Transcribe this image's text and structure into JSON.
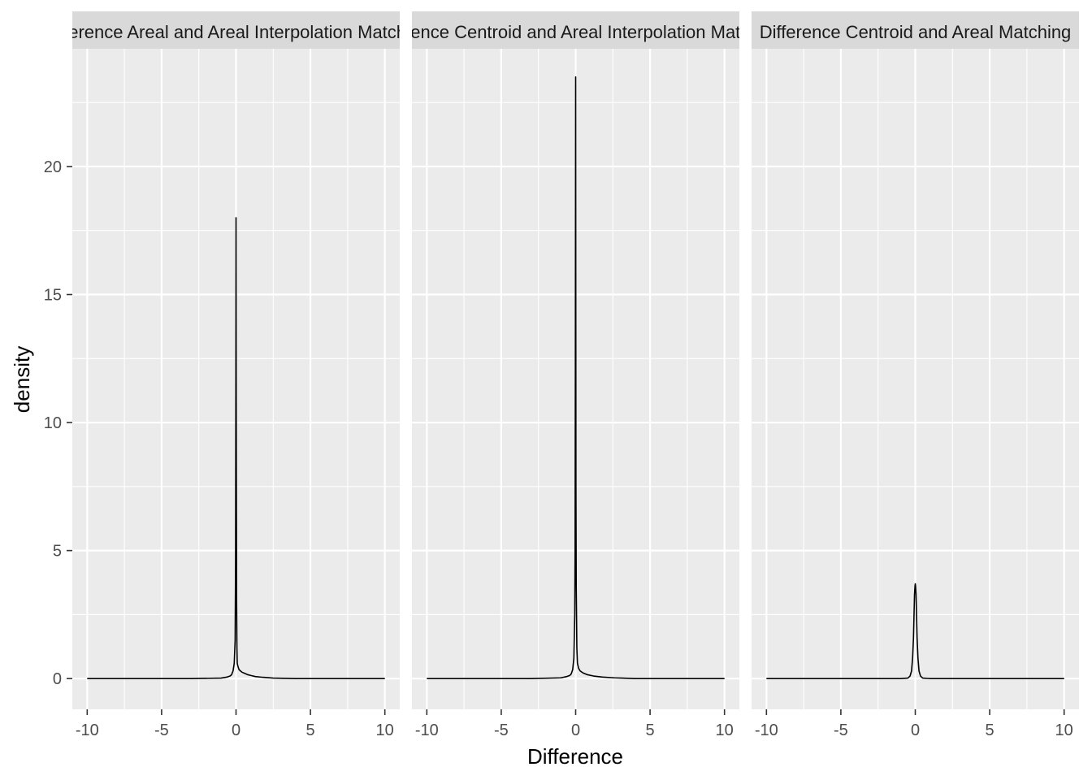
{
  "chart_data": {
    "type": "line",
    "xlabel": "Difference",
    "ylabel": "density",
    "xlim": [
      -10,
      10
    ],
    "ylim": [
      -1.2,
      24.6
    ],
    "x_ticks": [
      -10,
      -5,
      0,
      5,
      10
    ],
    "y_ticks": [
      0,
      5,
      10,
      15,
      20
    ],
    "x_tick_labels": [
      "-10",
      "-5",
      "0",
      "5",
      "10"
    ],
    "y_tick_labels": [
      "0",
      "5",
      "10",
      "15",
      "20"
    ],
    "grid": true,
    "facet_layout": "1 row x 3 columns, shared y axis",
    "colors": {
      "panel_background": "#ebebeb",
      "strip_background": "#d9d9d9",
      "grid": "#ffffff",
      "line": "#000000",
      "tick_label": "#4d4d4d"
    },
    "panels": [
      {
        "facet_label": "Difference Areal and Areal Interpolation Matching",
        "series": [
          {
            "x": [
              -10,
              -3,
              -1,
              -0.6,
              -0.4,
              -0.3,
              -0.2,
              -0.12,
              -0.06,
              -0.03,
              -0.01,
              0,
              0.01,
              0.02,
              0.04,
              0.06,
              0.08,
              0.12,
              0.2,
              0.3,
              0.4,
              0.6,
              0.8,
              1.0,
              1.3,
              1.8,
              2.5,
              4,
              10
            ],
            "y": [
              0,
              0,
              0.02,
              0.06,
              0.1,
              0.15,
              0.3,
              0.6,
              1.5,
              4.5,
              12,
              18,
              12,
              8.2,
              3,
              1.2,
              0.6,
              0.5,
              0.35,
              0.3,
              0.25,
              0.2,
              0.15,
              0.12,
              0.08,
              0.05,
              0.02,
              0,
              0
            ]
          }
        ]
      },
      {
        "facet_label": "Difference Centroid and Areal Interpolation Matching",
        "series": [
          {
            "x": [
              -10,
              -3,
              -1,
              -0.6,
              -0.4,
              -0.3,
              -0.2,
              -0.12,
              -0.06,
              -0.04,
              -0.02,
              -0.01,
              0,
              0.01,
              0.02,
              0.04,
              0.06,
              0.08,
              0.12,
              0.2,
              0.3,
              0.5,
              0.8,
              1.2,
              1.8,
              2.6,
              4,
              10
            ],
            "y": [
              0,
              0,
              0.03,
              0.08,
              0.12,
              0.18,
              0.35,
              0.8,
              2.5,
              4.8,
              12,
              18,
              23.5,
              15,
              7.4,
              3.5,
              2.4,
              1.2,
              0.6,
              0.4,
              0.3,
              0.22,
              0.15,
              0.1,
              0.06,
              0.03,
              0,
              0
            ]
          }
        ]
      },
      {
        "facet_label": "Difference Centroid and Areal Matching",
        "series": [
          {
            "x": [
              -10,
              -1,
              -0.5,
              -0.35,
              -0.25,
              -0.18,
              -0.12,
              -0.08,
              -0.05,
              -0.02,
              0,
              0.02,
              0.05,
              0.08,
              0.12,
              0.18,
              0.25,
              0.35,
              0.5,
              1,
              10
            ],
            "y": [
              0,
              0,
              0.02,
              0.1,
              0.3,
              0.8,
              1.6,
              2.6,
              3.3,
              3.6,
              3.7,
              3.6,
              3.3,
              2.6,
              1.6,
              0.8,
              0.3,
              0.1,
              0.02,
              0,
              0
            ]
          }
        ]
      }
    ]
  }
}
